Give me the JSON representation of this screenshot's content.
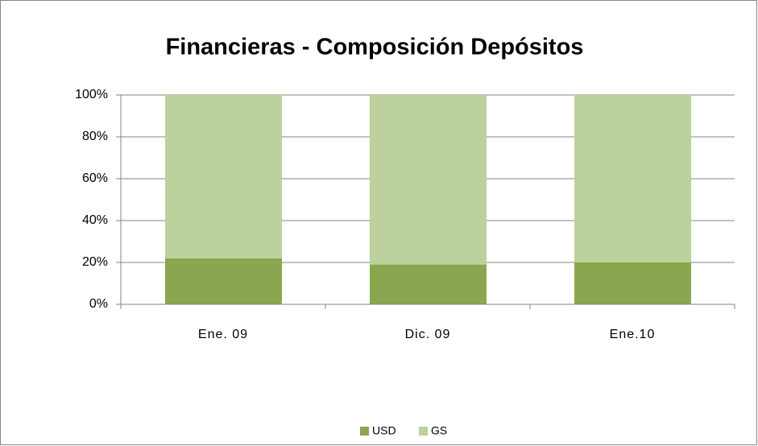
{
  "chart_data": {
    "type": "bar",
    "stacked": true,
    "title": "Financieras - Composición Depósitos",
    "categories": [
      "Ene. 09",
      "Dic. 09",
      "Ene.10"
    ],
    "series": [
      {
        "name": "USD",
        "color": "#8aa64f",
        "values": [
          22,
          19,
          20
        ]
      },
      {
        "name": "GS",
        "color": "#bcd19b",
        "values": [
          78,
          81,
          80
        ]
      }
    ],
    "ylim": [
      0,
      100
    ],
    "yticks": [
      {
        "value": 0,
        "label": "0%"
      },
      {
        "value": 20,
        "label": "20%"
      },
      {
        "value": 40,
        "label": "40%"
      },
      {
        "value": 60,
        "label": "60%"
      },
      {
        "value": 80,
        "label": "80%"
      },
      {
        "value": 100,
        "label": "100%"
      }
    ],
    "grid": true,
    "legend": "bottom"
  }
}
